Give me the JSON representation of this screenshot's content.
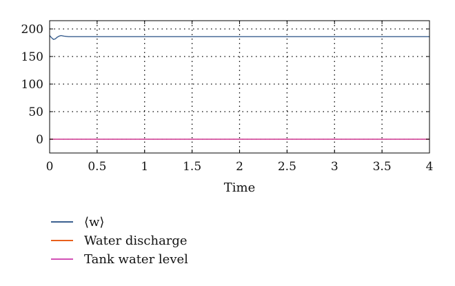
{
  "chart_data": {
    "type": "line",
    "title": "",
    "xlabel": "Time",
    "ylabel": "",
    "xlim": [
      0,
      4
    ],
    "ylim": [
      -25,
      215
    ],
    "xticks": [
      0,
      0.5,
      1,
      1.5,
      2,
      2.5,
      3,
      3.5,
      4
    ],
    "xtick_labels": [
      "0",
      "0.5",
      "1",
      "1.5",
      "2",
      "2.5",
      "3",
      "3.5",
      "4"
    ],
    "yticks": [
      0,
      50,
      100,
      150,
      200
    ],
    "ytick_labels": [
      "0",
      "50",
      "100",
      "150",
      "200"
    ],
    "grid": true,
    "legend_position": "below",
    "series": [
      {
        "name": "⟨w⟩",
        "color": "#3a5f8f",
        "x": [
          0,
          0.02,
          0.04,
          0.06,
          0.08,
          0.1,
          0.12,
          0.15,
          0.2,
          0.3,
          0.5,
          1,
          2,
          3,
          4
        ],
        "y": [
          188,
          184,
          181,
          182,
          185,
          187,
          188,
          187,
          186,
          186,
          186,
          186,
          186,
          186,
          186
        ]
      },
      {
        "name": "Water discharge",
        "color": "#e8601c",
        "x": [
          0,
          4
        ],
        "y": [
          0,
          0
        ]
      },
      {
        "name": "Tank water level",
        "color": "#d24fb5",
        "x": [
          0,
          4
        ],
        "y": [
          0,
          0
        ]
      }
    ]
  }
}
